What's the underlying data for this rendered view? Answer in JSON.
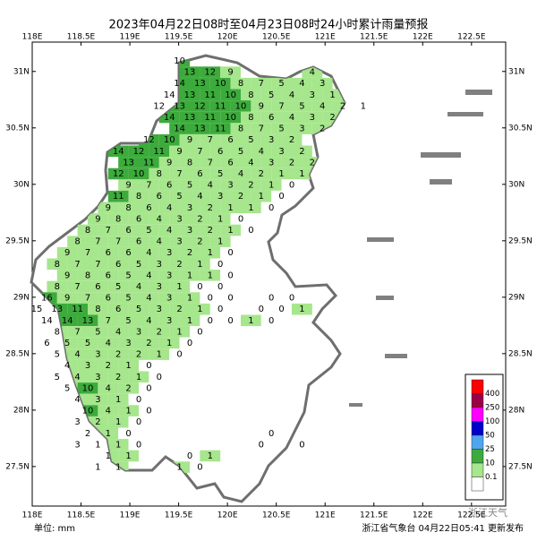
{
  "map": {
    "title": "2023年04月22日08时至04月23日08时24小时累计雨量预报",
    "xlim": [
      118,
      122.85
    ],
    "ylim": [
      27.15,
      31.26
    ],
    "xticks": [
      {
        "value": 118,
        "label": "118E"
      },
      {
        "value": 118.5,
        "label": "118.5E"
      },
      {
        "value": 119,
        "label": "119E"
      },
      {
        "value": 119.5,
        "label": "119.5E"
      },
      {
        "value": 120,
        "label": "120E"
      },
      {
        "value": 120.5,
        "label": "120.5E"
      },
      {
        "value": 121,
        "label": "121E"
      },
      {
        "value": 121.5,
        "label": "121.5E"
      },
      {
        "value": 122,
        "label": "122E"
      },
      {
        "value": 122.5,
        "label": "122.5E"
      }
    ],
    "yticks": [
      {
        "value": 31,
        "label": "31N"
      },
      {
        "value": 30.5,
        "label": "30.5N"
      },
      {
        "value": 30,
        "label": "30N"
      },
      {
        "value": 29.5,
        "label": "29.5N"
      },
      {
        "value": 29,
        "label": "29N"
      },
      {
        "value": 28.5,
        "label": "28.5N"
      },
      {
        "value": 28,
        "label": "28N"
      },
      {
        "value": 27.5,
        "label": "27.5N"
      }
    ],
    "rain_grid": [
      [
        null,
        null,
        null,
        null,
        null,
        null,
        null,
        10
      ],
      [
        null,
        null,
        null,
        null,
        null,
        null,
        null,
        13,
        12,
        9,
        null,
        null,
        null,
        4
      ],
      [
        null,
        null,
        null,
        null,
        null,
        null,
        null,
        14,
        13,
        10,
        8,
        7,
        5,
        4,
        3
      ],
      [
        null,
        null,
        null,
        null,
        null,
        null,
        14,
        13,
        11,
        10,
        8,
        5,
        4,
        3,
        1
      ],
      [
        null,
        null,
        null,
        null,
        null,
        null,
        12,
        13,
        12,
        11,
        10,
        9,
        7,
        5,
        4,
        2,
        1
      ],
      [
        null,
        null,
        null,
        null,
        null,
        null,
        14,
        13,
        11,
        10,
        8,
        6,
        4,
        3,
        2
      ],
      [
        null,
        null,
        null,
        null,
        null,
        null,
        null,
        14,
        13,
        11,
        8,
        7,
        5,
        3,
        2
      ],
      [
        null,
        null,
        null,
        null,
        null,
        12,
        10,
        9,
        7,
        6,
        5,
        3,
        2
      ],
      [
        null,
        null,
        null,
        null,
        14,
        12,
        11,
        9,
        7,
        6,
        5,
        4,
        3,
        2
      ],
      [
        null,
        null,
        null,
        null,
        13,
        11,
        9,
        8,
        7,
        6,
        4,
        3,
        2,
        2
      ],
      [
        null,
        null,
        null,
        null,
        12,
        10,
        8,
        7,
        6,
        5,
        4,
        2,
        1,
        1
      ],
      [
        null,
        null,
        null,
        null,
        9,
        7,
        6,
        5,
        4,
        3,
        2,
        1,
        0
      ],
      [
        null,
        null,
        null,
        null,
        11,
        8,
        6,
        5,
        4,
        3,
        2,
        1,
        0
      ],
      [
        null,
        null,
        null,
        9,
        8,
        6,
        4,
        3,
        2,
        1,
        1,
        0
      ],
      [
        null,
        null,
        null,
        9,
        8,
        6,
        4,
        3,
        2,
        1,
        0
      ],
      [
        null,
        null,
        8,
        7,
        6,
        5,
        4,
        3,
        2,
        1,
        0
      ],
      [
        null,
        null,
        8,
        7,
        7,
        6,
        4,
        3,
        2,
        1
      ],
      [
        null,
        9,
        7,
        6,
        6,
        4,
        3,
        2,
        1,
        0
      ],
      [
        null,
        8,
        7,
        7,
        6,
        5,
        3,
        2,
        1,
        0
      ],
      [
        null,
        9,
        8,
        6,
        5,
        4,
        3,
        1,
        1,
        0
      ],
      [
        null,
        8,
        7,
        6,
        5,
        4,
        3,
        1,
        0,
        0
      ],
      [
        16,
        9,
        7,
        6,
        5,
        4,
        3,
        1,
        0,
        0,
        null,
        0,
        0
      ],
      [
        15,
        13,
        11,
        8,
        6,
        5,
        3,
        2,
        1,
        0,
        null,
        0,
        0,
        1
      ],
      [
        14,
        14,
        13,
        7,
        5,
        4,
        3,
        1,
        0,
        0,
        1,
        0
      ],
      [
        null,
        8,
        7,
        5,
        4,
        3,
        2,
        1,
        0
      ],
      [
        6,
        5,
        5,
        4,
        3,
        2,
        1,
        0
      ],
      [
        null,
        5,
        4,
        3,
        2,
        2,
        1,
        0
      ],
      [
        null,
        4,
        3,
        2,
        1,
        0
      ],
      [
        null,
        5,
        4,
        3,
        2,
        1,
        0
      ],
      [
        null,
        5,
        10,
        4,
        2,
        0
      ],
      [
        null,
        null,
        4,
        3,
        1,
        0
      ],
      [
        null,
        null,
        10,
        4,
        1,
        0
      ],
      [
        null,
        null,
        3,
        2,
        1,
        0
      ],
      [
        null,
        null,
        2,
        1,
        0,
        null,
        null,
        null,
        null,
        null,
        null,
        0
      ],
      [
        null,
        null,
        3,
        1,
        1,
        0,
        null,
        null,
        null,
        null,
        null,
        0,
        null,
        0
      ],
      [
        null,
        null,
        null,
        1,
        1,
        null,
        null,
        0,
        1
      ],
      [
        null,
        null,
        null,
        1,
        1,
        null,
        null,
        1,
        0
      ]
    ],
    "legend": {
      "thresholds": [
        400,
        250,
        100,
        50,
        25,
        10,
        0.1
      ],
      "colors": [
        "#ff0000",
        "#9b0044",
        "#ff00ff",
        "#0000cc",
        "#4fa6f0",
        "#3cab3c",
        "#a6e68c",
        "#ffffff"
      ]
    },
    "unit_label": "单位: mm",
    "issuer": "浙江省气象台 04月22日05:41 更新发布",
    "watermark": "浙江天气"
  }
}
